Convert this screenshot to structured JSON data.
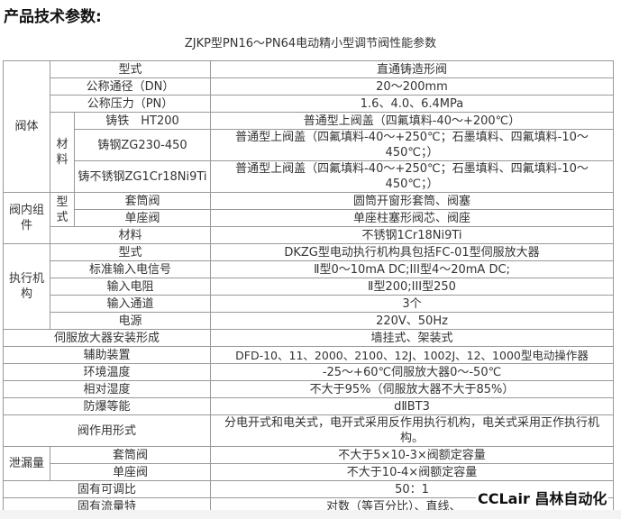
{
  "heading": "产品技术参数:",
  "caption": "ZJKP型PN16～PN64电动精小型调节阀性能参数",
  "groups": {
    "body": "阀体",
    "material": "材料",
    "internals": "阀内组件",
    "type": "型式",
    "actuator": "执行机构",
    "leak": "泄漏量"
  },
  "rows": [
    {
      "label": "型式",
      "value": "直通铸造形阀"
    },
    {
      "label": "公称通径（DN）",
      "value": "20～200mm"
    },
    {
      "label": "公称压力（PN）",
      "value": "1.6、4.0、6.4MPa"
    },
    {
      "label": "铸铁　HT200",
      "value": "普通型上阀盖（四氟填料-40～+200℃）"
    },
    {
      "label": "铸钢ZG230-450",
      "value": "普通型上阀盖（四氟填料-40～+250℃；石墨填料、四氟填料-10～450℃；）"
    },
    {
      "label": "铸不锈钢ZG1Cr18Ni9Ti",
      "value": "普通型上阀盖（四氟填料-40～+250℃；石墨填料、四氟填料-10～450℃；）"
    },
    {
      "label": "套筒阀",
      "value": "圆筒开窗形套筒、阀塞"
    },
    {
      "label": "单座阀",
      "value": "单座柱塞形阀芯、阀座"
    },
    {
      "label": "材料",
      "value": "不锈钢1Cr18Ni9Ti"
    },
    {
      "label": "型式",
      "value": "DKZG型电动执行机构具包括FC-01型伺服放大器"
    },
    {
      "label": "标准输入电信号",
      "value": "Ⅱ型0～10mA DC;III型4～20mA DC;"
    },
    {
      "label": "输入电阻",
      "value": "Ⅱ型200;III型250"
    },
    {
      "label": "输入通道",
      "value": "3个"
    },
    {
      "label": "电源",
      "value": "220V、50Hz"
    },
    {
      "label": "伺服放大器安装形成",
      "value": "墙挂式、架装式"
    },
    {
      "label": "辅助装置",
      "value": "DFD-10、11、2000、2100、12J、1002J、12、1000型电动操作器"
    },
    {
      "label": "环境温度",
      "value": "-25～+60℃伺服放大器0～-50℃"
    },
    {
      "label": "相对湿度",
      "value": "不大于95%（伺服放大器不大于85%）"
    },
    {
      "label": "防爆等能",
      "value": "dⅡBT3"
    },
    {
      "label": "阀作用形式",
      "value": "分电开式和电关式，电开式采用反作用执行机构，电关式采用正作执行机构。"
    },
    {
      "label": "套筒阀",
      "value": "不大于5×10-3×阀额定容量"
    },
    {
      "label": "单座阀",
      "value": "不大于10-4×阀额定容量"
    },
    {
      "label": "固有可调比",
      "value": "50：1"
    },
    {
      "label": "固有流量特",
      "value": "对数（等百分比）、直线、"
    }
  ],
  "watermark": "CCLair 昌林自动化"
}
